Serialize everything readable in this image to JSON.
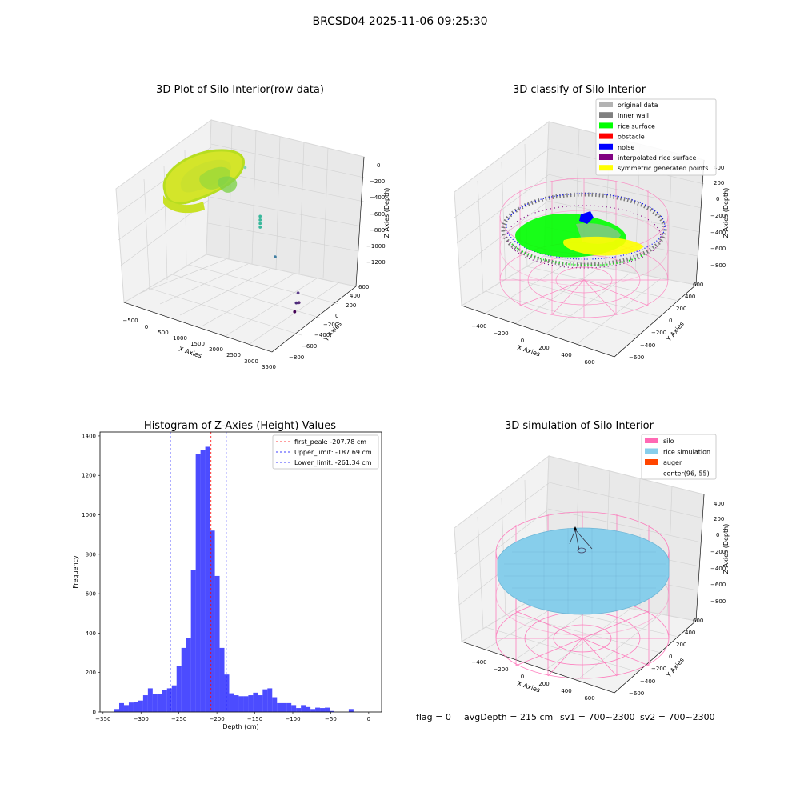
{
  "figure_title": "BRCSD04 2025-11-06 09:25:30",
  "footer": {
    "flag": "flag = 0",
    "avg": "avgDepth = 215 cm",
    "sv1": "sv1 = 700~2300",
    "sv2": "sv2 = 700~2300"
  },
  "colors": {
    "pane": "#f2f2f2",
    "pane_dark": "#e6e6e6",
    "grid": "#d2d2d2",
    "hist_bar": "#0000ff",
    "peak_line": "#ff0000",
    "limit_line": "#0000ff",
    "silo_pink": "#ff69b4",
    "rice_blue": "#87ceeb",
    "auger": "#ff4500"
  },
  "chart_data": [
    {
      "type": "scatter3d",
      "title": "3D Plot of Silo Interior(row data)",
      "xlabel": "X Axies",
      "ylabel": "Y Axies",
      "zlabel": "Z Axies (Depth)",
      "x_ticks": [
        "−500",
        "0",
        "500",
        "1000",
        "1500",
        "2000",
        "2500",
        "3000",
        "3500"
      ],
      "y_ticks": [
        "−800",
        "−600",
        "−400",
        "−200",
        "0",
        "200",
        "400",
        "600"
      ],
      "z_ticks": [
        "0",
        "−200",
        "−400",
        "−600",
        "−800",
        "−1000",
        "−1200"
      ],
      "xlim": [
        -600,
        3600
      ],
      "ylim": [
        -900,
        700
      ],
      "zlim": [
        -1350,
        80
      ],
      "outliers": [
        {
          "x": 1050,
          "y": 300,
          "z": -190
        },
        {
          "x": 1550,
          "y": 250,
          "z": -640
        },
        {
          "x": 1550,
          "y": 250,
          "z": -680
        },
        {
          "x": 1550,
          "y": 250,
          "z": -720
        },
        {
          "x": 1550,
          "y": 250,
          "z": -760
        },
        {
          "x": 2050,
          "y": 200,
          "z": -1000
        },
        {
          "x": 2850,
          "y": 100,
          "z": -1250
        },
        {
          "x": 2950,
          "y": 50,
          "z": -1320
        },
        {
          "x": 2950,
          "y": 0,
          "z": -1300
        },
        {
          "x": 3050,
          "y": -100,
          "z": -1340
        }
      ]
    },
    {
      "type": "scatter3d",
      "title": "3D classify of Silo Interior",
      "xlabel": "X Axies",
      "ylabel": "Y Axies",
      "zlabel": "Z Axies (Depth)",
      "x_ticks": [
        "−400",
        "−200",
        "0",
        "200",
        "400",
        "600"
      ],
      "y_ticks": [
        "−600",
        "−400",
        "−200",
        "0",
        "200",
        "400",
        "600"
      ],
      "z_ticks": [
        "400",
        "200",
        "0",
        "−200",
        "−400",
        "−600",
        "−800"
      ],
      "xlim": [
        -550,
        750
      ],
      "ylim": [
        -700,
        700
      ],
      "zlim": [
        -900,
        450
      ],
      "legend": [
        {
          "label": "original data",
          "color": "#b3b3b3"
        },
        {
          "label": "inner wall",
          "color": "#808080"
        },
        {
          "label": "rice surface",
          "color": "#00ff00"
        },
        {
          "label": "obstacle",
          "color": "#ff0000"
        },
        {
          "label": "noise",
          "color": "#0000ff"
        },
        {
          "label": "interpolated rice surface",
          "color": "#800080"
        },
        {
          "label": "symmetric generated points",
          "color": "#ffff00"
        }
      ]
    },
    {
      "type": "bar",
      "title": "Histogram of Z-Axies (Height) Values",
      "xlabel": "Depth (cm)",
      "ylabel": "Frequency",
      "xlim": [
        -354,
        17
      ],
      "ylim": [
        0,
        1420
      ],
      "x_ticks": [
        -350,
        -300,
        -250,
        -200,
        -150,
        -100,
        -50,
        0
      ],
      "y_ticks": [
        0,
        200,
        400,
        600,
        800,
        1000,
        1200,
        1400
      ],
      "bin_start": -335,
      "bin_width": 6.3,
      "values": [
        15,
        45,
        35,
        48,
        52,
        58,
        85,
        120,
        90,
        92,
        112,
        120,
        135,
        235,
        325,
        375,
        720,
        1310,
        1330,
        1345,
        920,
        690,
        325,
        190,
        95,
        85,
        80,
        80,
        85,
        98,
        85,
        115,
        120,
        75,
        45,
        45,
        45,
        35,
        20,
        35,
        25,
        15,
        22,
        20,
        22,
        5,
        0,
        0,
        0,
        15
      ],
      "vlines": [
        {
          "label": "first_peak: -207.78 cm",
          "x": -207.78,
          "color": "#ff0000"
        },
        {
          "label": "Upper_limit: -187.69 cm",
          "x": -187.69,
          "color": "#0000ff"
        },
        {
          "label": "Lower_limit: -261.34 cm",
          "x": -261.34,
          "color": "#0000ff"
        }
      ]
    },
    {
      "type": "surface3d",
      "title": "3D simulation of Silo Interior",
      "xlabel": "X Axies",
      "ylabel": "Y Axies",
      "zlabel": "Z Axies (Depth)",
      "x_ticks": [
        "−400",
        "−200",
        "0",
        "200",
        "400",
        "600"
      ],
      "y_ticks": [
        "−600",
        "−400",
        "−200",
        "0",
        "200",
        "400",
        "600"
      ],
      "z_ticks": [
        "400",
        "200",
        "0",
        "−200",
        "−400",
        "−600",
        "−800"
      ],
      "xlim": [
        -550,
        750
      ],
      "ylim": [
        -700,
        700
      ],
      "zlim": [
        -900,
        450
      ],
      "legend": [
        {
          "label": "silo",
          "color": "#ff69b4"
        },
        {
          "label": "rice simulation",
          "color": "#87ceeb"
        },
        {
          "label": "auger",
          "color": "#ff4500"
        },
        {
          "label": "center(96,-55)",
          "color": ""
        }
      ]
    }
  ]
}
